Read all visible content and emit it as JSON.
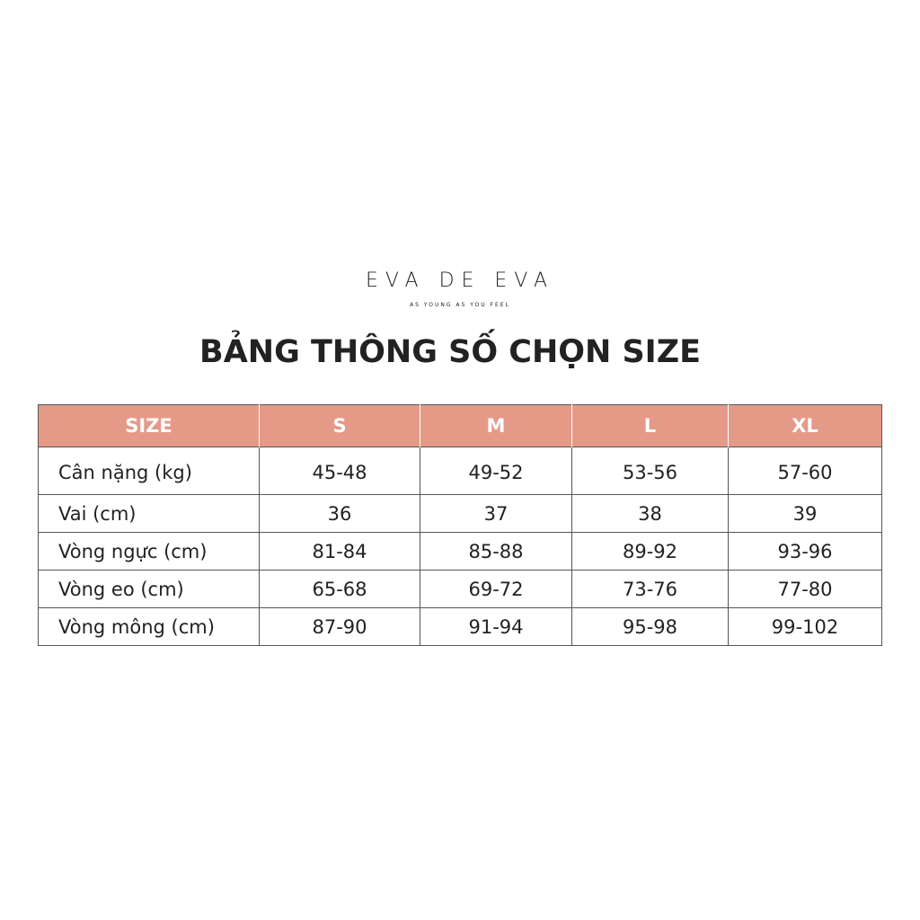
{
  "brand": {
    "name": "EVA DE EVA",
    "tagline": "AS YOUNG AS YOU FEEL"
  },
  "title": "BẢNG THÔNG SỐ CHỌN SIZE",
  "table": {
    "header": [
      "SIZE",
      "S",
      "M",
      "L",
      "XL"
    ],
    "rows": [
      [
        "Cân nặng (kg)",
        "45-48",
        "49-52",
        "53-56",
        "57-60"
      ],
      [
        "Vai (cm)",
        "36",
        "37",
        "38",
        "39"
      ],
      [
        "Vòng ngực (cm)",
        "81-84",
        "85-88",
        "89-92",
        "93-96"
      ],
      [
        "Vòng eo (cm)",
        "65-68",
        "69-72",
        "73-76",
        "77-80"
      ],
      [
        "Vòng mông (cm)",
        "87-90",
        "91-94",
        "95-98",
        "99-102"
      ]
    ]
  }
}
